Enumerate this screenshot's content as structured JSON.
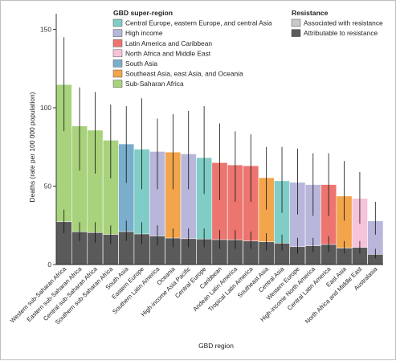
{
  "chart_data": {
    "type": "bar",
    "xlabel": "GBD region",
    "ylabel": "Deaths (rate per 100 000 population)",
    "ylim": [
      0,
      160
    ],
    "yticks": [
      0,
      50,
      100,
      150
    ],
    "grid": false,
    "legend_placement": "top-right",
    "super_region_legend": {
      "title": "GBD super-region",
      "items": [
        {
          "key": "ceeca",
          "label": "Central Europe, eastern Europe, and central Asia",
          "color": "#7fcdc6"
        },
        {
          "key": "high",
          "label": "High income",
          "color": "#b8b6da"
        },
        {
          "key": "lac",
          "label": "Latin America and Caribbean",
          "color": "#ec7570"
        },
        {
          "key": "name",
          "label": "North Africa and Middle East",
          "color": "#f7c3d8"
        },
        {
          "key": "sa",
          "label": "South Asia",
          "color": "#7aaecc"
        },
        {
          "key": "seao",
          "label": "Southeast Asia, east Asia, and Oceania",
          "color": "#f2a54b"
        },
        {
          "key": "ssa",
          "label": "Sub-Saharan Africa",
          "color": "#a8d27c"
        }
      ]
    },
    "resistance_legend": {
      "title": "Resistance",
      "items": [
        {
          "key": "associated",
          "label": "Associated with resistance",
          "color": "#c8c8c8"
        },
        {
          "key": "attributable",
          "label": "Attributable to resistance",
          "color": "#5a5a5a"
        }
      ]
    },
    "categories": [
      "Western sub-Saharan Africa",
      "Eastern sub-Saharan Africa",
      "Central sub-Saharan Africa",
      "Southern sub-Saharan Africa",
      "South Asia",
      "Eastern Europe",
      "Southern Latin America",
      "Oceania",
      "High-income Asia Pacific",
      "Central Europe",
      "Caribbean",
      "Andean Latin America",
      "Tropical Latin America",
      "Southeast Asia",
      "Central Asia",
      "Western Europe",
      "High-income North America",
      "Central Latin America",
      "East Asia",
      "North Africa and Middle East",
      "Australasia"
    ],
    "super_region": [
      "ssa",
      "ssa",
      "ssa",
      "ssa",
      "sa",
      "ceeca",
      "high",
      "seao",
      "high",
      "ceeca",
      "lac",
      "lac",
      "lac",
      "seao",
      "ceeca",
      "high",
      "high",
      "lac",
      "seao",
      "name",
      "high"
    ],
    "series": [
      {
        "name": "Associated with resistance",
        "values": [
          114.8,
          88.4,
          85.7,
          79.3,
          76.9,
          73.6,
          72.1,
          71.7,
          70.6,
          68.2,
          65.0,
          63.5,
          63.0,
          55.4,
          53.4,
          52.4,
          51.0,
          51.0,
          43.7,
          42.2,
          27.8
        ],
        "lower": [
          85,
          60,
          58,
          55,
          52,
          48,
          48,
          48,
          48,
          45,
          41,
          40,
          40,
          35,
          33,
          32,
          31,
          31,
          28,
          26,
          19
        ],
        "upper": [
          145,
          113,
          110,
          102,
          101,
          106,
          93,
          96,
          98,
          101,
          90,
          85,
          83,
          75,
          75,
          74,
          71,
          71,
          66,
          59,
          40
        ]
      },
      {
        "name": "Attributable to resistance",
        "values": [
          27.3,
          20.9,
          20.4,
          19.2,
          21.0,
          19.5,
          18.2,
          16.9,
          16.5,
          16.3,
          15.9,
          15.8,
          15.0,
          14.5,
          13.6,
          11.4,
          12.0,
          12.8,
          10.5,
          10.9,
          6.5
        ],
        "lower": [
          20,
          15,
          14,
          13,
          15,
          13,
          12,
          11,
          11,
          11,
          10,
          10,
          10,
          9,
          9,
          7,
          8,
          8,
          7,
          7,
          4
        ],
        "upper": [
          35,
          27,
          27,
          25,
          28,
          27,
          25,
          23,
          23,
          23,
          22,
          22,
          21,
          20,
          19,
          17,
          17,
          18,
          15,
          15,
          10
        ]
      }
    ]
  }
}
